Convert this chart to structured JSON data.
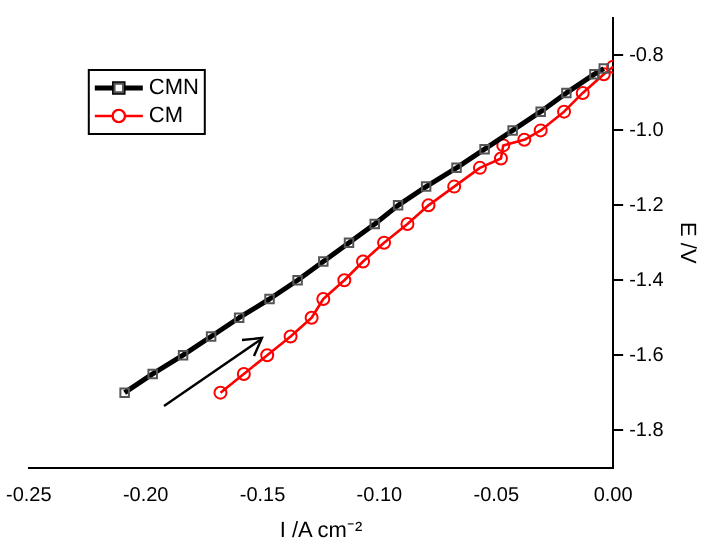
{
  "chart_data": {
    "type": "line",
    "xlabel": "I /A cm⁻²",
    "ylabel": "E /V",
    "xlim": [
      -0.25,
      0.0
    ],
    "xticks": [
      {
        "value": -0.25,
        "label": "-0.25"
      },
      {
        "value": -0.2,
        "label": "-0.20"
      },
      {
        "value": -0.15,
        "label": "-0.15"
      },
      {
        "value": -0.1,
        "label": "-0.10"
      },
      {
        "value": -0.05,
        "label": "-0.05"
      },
      {
        "value": 0,
        "label": "0.00"
      }
    ],
    "ylim": [
      -1.9,
      -0.7
    ],
    "yticks": [
      {
        "value": -1.8,
        "label": "-1.8"
      },
      {
        "value": -1.6,
        "label": "-1.6"
      },
      {
        "value": -1.4,
        "label": "-1.4"
      },
      {
        "value": -1.2,
        "label": "-1.2"
      },
      {
        "value": -1.0,
        "label": "-1.0"
      },
      {
        "value": -0.8,
        "label": "-0.8"
      }
    ],
    "legend": "top left",
    "grid": false,
    "line_style": "solid",
    "series": [
      {
        "name": "CMN",
        "color": "#000000",
        "marker": "square",
        "x": [
          -0.209,
          -0.197,
          -0.184,
          -0.172,
          -0.16,
          -0.147,
          -0.135,
          -0.124,
          -0.113,
          -0.102,
          -0.092,
          -0.08,
          -0.067,
          -0.055,
          -0.043,
          -0.031,
          -0.02,
          -0.008,
          -0.004
        ],
        "values": [
          -1.7,
          -1.65,
          -1.6,
          -1.55,
          -1.5,
          -1.45,
          -1.4,
          -1.35,
          -1.3,
          -1.25,
          -1.2,
          -1.15,
          -1.1,
          -1.05,
          -1.0,
          -0.95,
          -0.9,
          -0.85,
          -0.835
        ]
      },
      {
        "name": "CM",
        "color": "#ff0000",
        "marker": "circle",
        "x": [
          -0.168,
          -0.158,
          -0.148,
          -0.138,
          -0.129,
          -0.124,
          -0.115,
          -0.107,
          -0.098,
          -0.088,
          -0.079,
          -0.068,
          -0.057,
          -0.048,
          -0.047,
          -0.038,
          -0.031,
          -0.021,
          -0.013,
          -0.004,
          0.0
        ],
        "values": [
          -1.7,
          -1.65,
          -1.6,
          -1.55,
          -1.5,
          -1.45,
          -1.4,
          -1.35,
          -1.3,
          -1.25,
          -1.2,
          -1.15,
          -1.1,
          -1.075,
          -1.04,
          -1.025,
          -1.0,
          -0.95,
          -0.9,
          -0.85,
          -0.83
        ]
      }
    ]
  }
}
